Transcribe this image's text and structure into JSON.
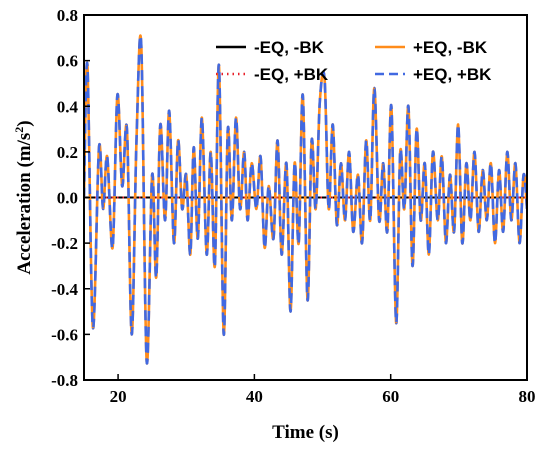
{
  "chart_data": {
    "type": "line",
    "title": "",
    "xlabel": "Time (s)",
    "ylabel_main": "Acceleration (m/s",
    "ylabel_sup": "2",
    "ylabel_tail": ")",
    "xlim": [
      15,
      80
    ],
    "ylim": [
      -0.8,
      0.8
    ],
    "xticks": [
      20,
      40,
      60,
      80
    ],
    "yticks": [
      -0.8,
      -0.6,
      -0.4,
      -0.2,
      0.0,
      0.2,
      0.4,
      0.6,
      0.8
    ],
    "ytick_labels": [
      "-0.8",
      "-0.6",
      "-0.4",
      "-0.2",
      "0.0",
      "0.2",
      "0.4",
      "0.6",
      "0.8"
    ],
    "grid": false,
    "legend_position": "top-right",
    "legend_columns": 2,
    "series": [
      {
        "name": "-EQ, -BK",
        "color": "#000000",
        "style": "solid",
        "role": "zero"
      },
      {
        "name": "-EQ, +BK",
        "color": "#e8202a",
        "style": "dot",
        "role": "zero"
      },
      {
        "name": "+EQ, -BK",
        "color": "#ff8c1a",
        "style": "solid",
        "role": "signal"
      },
      {
        "name": "+EQ, +BK",
        "color": "#4169e1",
        "style": "dashed",
        "role": "signal"
      }
    ],
    "signal_extrema": [
      [
        15.0,
        0.0
      ],
      [
        15.5,
        0.58
      ],
      [
        16.3,
        -0.57
      ],
      [
        17.2,
        0.22
      ],
      [
        17.8,
        -0.05
      ],
      [
        18.4,
        0.18
      ],
      [
        19.2,
        -0.22
      ],
      [
        19.9,
        0.45
      ],
      [
        20.6,
        0.05
      ],
      [
        21.3,
        0.3
      ],
      [
        22.0,
        -0.6
      ],
      [
        22.7,
        0.25
      ],
      [
        23.4,
        0.67
      ],
      [
        24.2,
        -0.72
      ],
      [
        25.0,
        0.1
      ],
      [
        25.6,
        -0.35
      ],
      [
        26.2,
        0.32
      ],
      [
        26.9,
        -0.1
      ],
      [
        27.5,
        0.38
      ],
      [
        28.2,
        -0.2
      ],
      [
        28.8,
        0.25
      ],
      [
        29.4,
        -0.05
      ],
      [
        30.0,
        0.1
      ],
      [
        30.6,
        -0.25
      ],
      [
        31.1,
        0.22
      ],
      [
        31.7,
        -0.18
      ],
      [
        32.3,
        0.35
      ],
      [
        33.0,
        -0.25
      ],
      [
        33.6,
        0.2
      ],
      [
        34.2,
        -0.3
      ],
      [
        34.8,
        0.58
      ],
      [
        35.5,
        -0.6
      ],
      [
        36.1,
        0.3
      ],
      [
        36.7,
        -0.1
      ],
      [
        37.3,
        0.35
      ],
      [
        37.9,
        -0.05
      ],
      [
        38.5,
        0.2
      ],
      [
        39.0,
        -0.1
      ],
      [
        39.6,
        0.15
      ],
      [
        40.3,
        -0.05
      ],
      [
        40.9,
        0.18
      ],
      [
        41.5,
        -0.22
      ],
      [
        42.1,
        0.05
      ],
      [
        42.8,
        -0.18
      ],
      [
        43.4,
        0.25
      ],
      [
        44.0,
        -0.25
      ],
      [
        44.7,
        0.15
      ],
      [
        45.3,
        -0.5
      ],
      [
        45.9,
        0.15
      ],
      [
        46.5,
        -0.2
      ],
      [
        47.1,
        0.45
      ],
      [
        47.8,
        -0.45
      ],
      [
        48.4,
        0.25
      ],
      [
        49.0,
        -0.05
      ],
      [
        49.6,
        0.42
      ],
      [
        50.3,
        0.52
      ],
      [
        50.9,
        -0.05
      ],
      [
        51.5,
        0.32
      ],
      [
        52.1,
        -0.12
      ],
      [
        52.7,
        0.15
      ],
      [
        53.3,
        -0.1
      ],
      [
        53.9,
        0.2
      ],
      [
        54.5,
        -0.15
      ],
      [
        55.2,
        0.1
      ],
      [
        55.8,
        -0.2
      ],
      [
        56.4,
        0.25
      ],
      [
        57.0,
        -0.1
      ],
      [
        57.6,
        0.48
      ],
      [
        58.3,
        -0.1
      ],
      [
        58.9,
        0.15
      ],
      [
        59.5,
        -0.15
      ],
      [
        60.1,
        0.4
      ],
      [
        60.8,
        -0.55
      ],
      [
        61.4,
        0.2
      ],
      [
        62.0,
        -0.05
      ],
      [
        62.6,
        0.4
      ],
      [
        63.2,
        -0.3
      ],
      [
        63.8,
        0.3
      ],
      [
        64.4,
        -0.1
      ],
      [
        65.0,
        0.15
      ],
      [
        65.6,
        -0.25
      ],
      [
        66.2,
        0.2
      ],
      [
        66.9,
        -0.1
      ],
      [
        67.5,
        0.18
      ],
      [
        68.1,
        -0.2
      ],
      [
        68.7,
        0.1
      ],
      [
        69.3,
        -0.15
      ],
      [
        69.9,
        0.32
      ],
      [
        70.5,
        -0.2
      ],
      [
        71.1,
        0.15
      ],
      [
        71.7,
        -0.1
      ],
      [
        72.3,
        0.2
      ],
      [
        72.9,
        -0.15
      ],
      [
        73.5,
        0.12
      ],
      [
        74.1,
        -0.1
      ],
      [
        74.7,
        0.15
      ],
      [
        75.3,
        -0.2
      ],
      [
        75.9,
        0.12
      ],
      [
        76.5,
        -0.15
      ],
      [
        77.1,
        0.2
      ],
      [
        77.7,
        -0.1
      ],
      [
        78.3,
        0.15
      ],
      [
        78.9,
        -0.2
      ],
      [
        79.5,
        0.1
      ],
      [
        80.0,
        -0.05
      ]
    ]
  }
}
